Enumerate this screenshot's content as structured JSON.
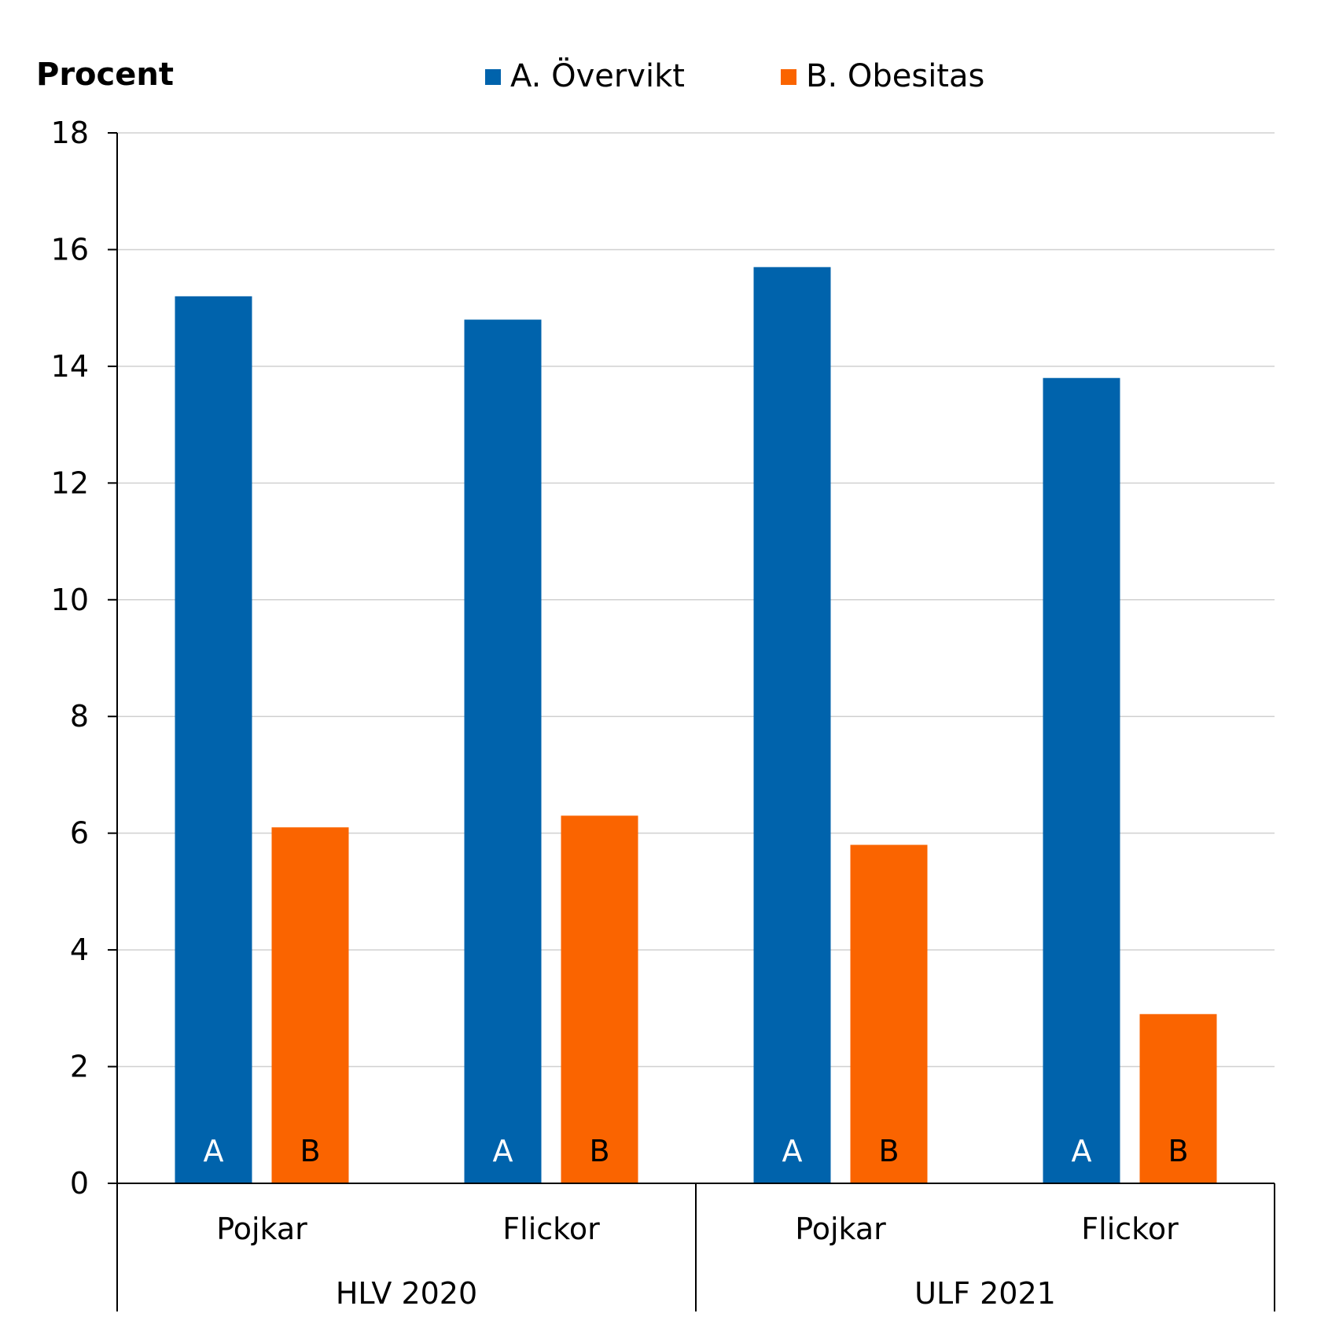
{
  "chart_data": {
    "type": "bar",
    "ylabel": "Procent",
    "ylim": [
      0,
      18
    ],
    "yticks": [
      0,
      2,
      4,
      6,
      8,
      10,
      12,
      14,
      16,
      18
    ],
    "grid": true,
    "legend_position": "top",
    "groups": [
      {
        "label": "HLV 2020",
        "categories": [
          "Pojkar",
          "Flickor"
        ]
      },
      {
        "label": "ULF 2021",
        "categories": [
          "Pojkar",
          "Flickor"
        ]
      }
    ],
    "categories": [
      "Pojkar",
      "Flickor",
      "Pojkar",
      "Flickor"
    ],
    "series": [
      {
        "name": "A. Övervikt",
        "bar_label": "A",
        "color": "#0063ac",
        "values": [
          15.2,
          14.8,
          15.7,
          13.8
        ]
      },
      {
        "name": "B. Obesitas",
        "bar_label": "B",
        "color": "#fa6400",
        "values": [
          6.1,
          6.3,
          5.8,
          2.9
        ]
      }
    ]
  }
}
